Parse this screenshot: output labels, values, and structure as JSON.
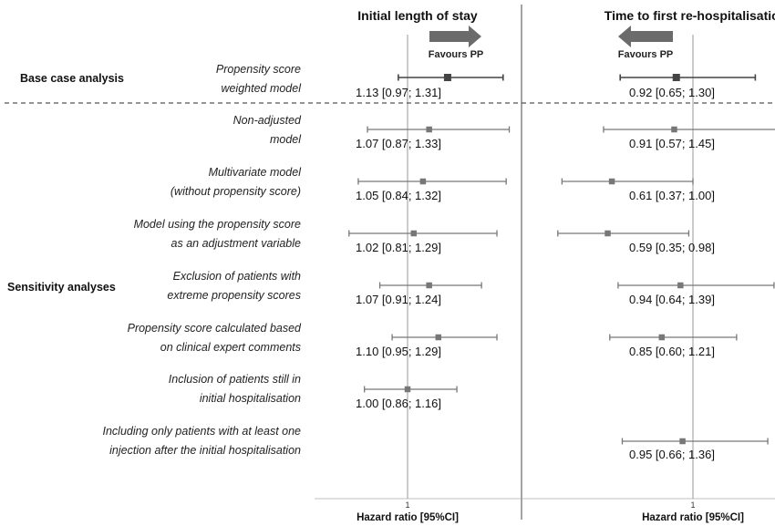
{
  "chart_data": {
    "type": "forest",
    "group_labels": {
      "base_case": "Base case analysis",
      "sensitivity": "Sensitivity analyses"
    },
    "panels": [
      {
        "id": "los",
        "title": "Initial length of stay",
        "favours": "Favours PP",
        "arrow_direction": "right",
        "axis_label": "Hazard ratio [95%CI]",
        "tick_label": "1",
        "xlim": [
          0.7,
          1.5
        ],
        "ref_value": 1
      },
      {
        "id": "rehosp",
        "title": "Time to first re-hospitalisation",
        "favours": "Favours PP",
        "arrow_direction": "left",
        "axis_label": "Hazard ratio [95%CI]",
        "tick_label": "1",
        "xlim": [
          0.2,
          1.5
        ],
        "ref_value": 1
      }
    ],
    "rows": [
      {
        "label": [
          "Propensity score",
          "weighted model"
        ],
        "group": "base_case",
        "primary": true,
        "los": {
          "hr": 1.13,
          "lo": 0.97,
          "hi": 1.31,
          "text": "1.13  [0.97; 1.31]"
        },
        "rehosp": {
          "hr": 0.92,
          "lo": 0.65,
          "hi": 1.3,
          "text": "0.92  [0.65; 1.30]"
        }
      },
      {
        "label": [
          "Non-adjusted",
          "model"
        ],
        "group": "sensitivity",
        "los": {
          "hr": 1.07,
          "lo": 0.87,
          "hi": 1.33,
          "text": "1.07  [0.87; 1.33]"
        },
        "rehosp": {
          "hr": 0.91,
          "lo": 0.57,
          "hi": 1.45,
          "text": "0.91  [0.57; 1.45]"
        }
      },
      {
        "label": [
          "Multivariate model",
          "(without propensity score)"
        ],
        "group": "sensitivity",
        "los": {
          "hr": 1.05,
          "lo": 0.84,
          "hi": 1.32,
          "text": "1.05  [0.84; 1.32]"
        },
        "rehosp": {
          "hr": 0.61,
          "lo": 0.37,
          "hi": 1.0,
          "text": "0.61  [0.37; 1.00]"
        }
      },
      {
        "label": [
          "Model using the propensity score",
          "as an adjustment variable"
        ],
        "group": "sensitivity",
        "los": {
          "hr": 1.02,
          "lo": 0.81,
          "hi": 1.29,
          "text": "1.02  [0.81; 1.29]"
        },
        "rehosp": {
          "hr": 0.59,
          "lo": 0.35,
          "hi": 0.98,
          "text": "0.59  [0.35; 0.98]"
        }
      },
      {
        "label": [
          "Exclusion of patients with",
          "extreme propensity scores"
        ],
        "group": "sensitivity",
        "los": {
          "hr": 1.07,
          "lo": 0.91,
          "hi": 1.24,
          "text": "1.07  [0.91; 1.24]"
        },
        "rehosp": {
          "hr": 0.94,
          "lo": 0.64,
          "hi": 1.39,
          "text": "0.94  [0.64; 1.39]"
        }
      },
      {
        "label": [
          "Propensity score calculated based",
          "on clinical expert comments"
        ],
        "group": "sensitivity",
        "los": {
          "hr": 1.1,
          "lo": 0.95,
          "hi": 1.29,
          "text": "1.10  [0.95; 1.29]"
        },
        "rehosp": {
          "hr": 0.85,
          "lo": 0.6,
          "hi": 1.21,
          "text": "0.85  [0.60; 1.21]"
        }
      },
      {
        "label": [
          "Inclusion of patients still in",
          "initial hospitalisation"
        ],
        "group": "sensitivity",
        "los": {
          "hr": 1.0,
          "lo": 0.86,
          "hi": 1.16,
          "text": "1.00  [0.86; 1.16]"
        },
        "rehosp": null
      },
      {
        "label": [
          "Including only patients with at least one",
          "injection after the initial hospitalisation"
        ],
        "group": "sensitivity",
        "los": null,
        "rehosp": {
          "hr": 0.95,
          "lo": 0.66,
          "hi": 1.36,
          "text": "0.95  [0.66; 1.36]"
        }
      }
    ],
    "colors": {
      "ci": "#777777",
      "ci_primary": "#444444",
      "arrow": "#6b6b6b",
      "reference": "#999999",
      "separator": "#555555"
    }
  }
}
